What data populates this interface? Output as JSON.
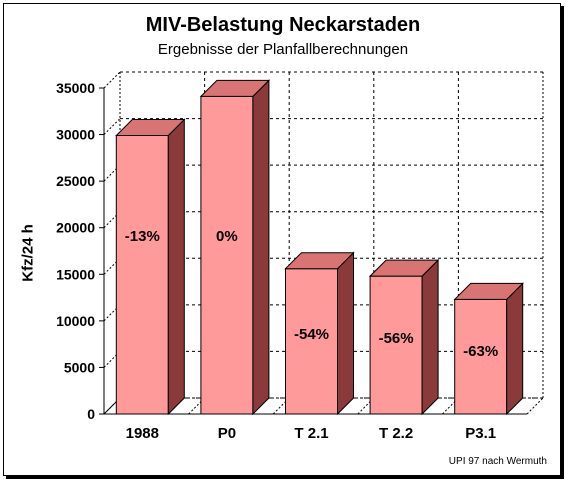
{
  "chart_data": {
    "type": "bar",
    "title": "MIV-Belastung Neckarstaden",
    "subtitle": "Ergebnisse der Planfallberechnungen",
    "ylabel": "Kfz/24 h",
    "xlabel": "",
    "categories": [
      "1988",
      "P0",
      "T 2.1",
      "T 2.2",
      "P3.1"
    ],
    "values": [
      29900,
      34100,
      15600,
      14800,
      12300
    ],
    "bar_labels": [
      "-13%",
      "0%",
      "-54%",
      "-56%",
      "-63%"
    ],
    "ylim": [
      0,
      35000
    ],
    "yticks": [
      0,
      5000,
      10000,
      15000,
      20000,
      25000,
      30000,
      35000
    ],
    "ytick_labels": [
      "0",
      "5000",
      "10000",
      "15000",
      "20000",
      "25000",
      "30000",
      "35000"
    ],
    "grid": true,
    "style": "3d",
    "colors": {
      "bar_front": "#ff9a9a",
      "bar_top": "#d97474",
      "bar_side": "#8a3a3a",
      "grid": "#000000"
    }
  },
  "source_note": "UPI 97 nach Wermuth"
}
